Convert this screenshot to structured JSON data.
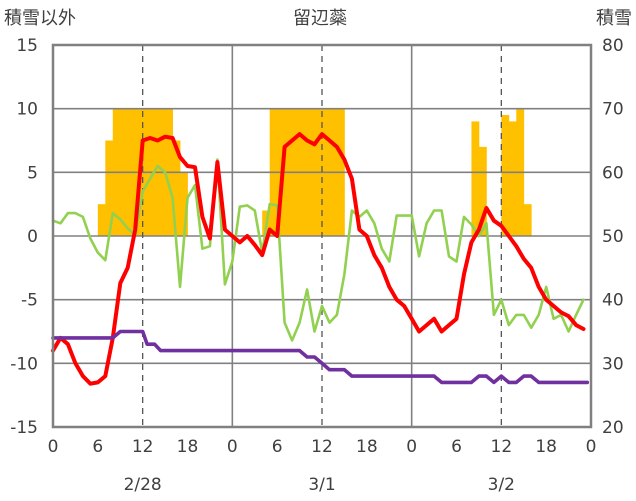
{
  "chart_data": {
    "type": "combo",
    "title": "留辺蘂",
    "left_axis_label": "積雪以外",
    "right_axis_label": "積雪",
    "left_ylim": [
      -15,
      15
    ],
    "left_ticks": [
      "15",
      "10",
      "5",
      "0",
      "-5",
      "-10",
      "-15"
    ],
    "right_ylim": [
      20,
      80
    ],
    "right_ticks": [
      "80",
      "70",
      "60",
      "50",
      "40",
      "30",
      "20"
    ],
    "x_range_hours": [
      0,
      72
    ],
    "x_tick_labels": [
      "0",
      "6",
      "12",
      "18",
      "0",
      "6",
      "12",
      "18",
      "0",
      "6",
      "12",
      "18",
      "0"
    ],
    "date_labels": [
      "2/28",
      "3/1",
      "3/2"
    ],
    "grid": true,
    "colors": {
      "red_series": "#ff0000",
      "green_series": "#92d050",
      "purple_series": "#7030a0",
      "bars": "#ffc000",
      "axis": "#808080"
    },
    "series": [
      {
        "axis": "left",
        "color": "#ff0000",
        "points": [
          [
            0,
            -9
          ],
          [
            1,
            -8
          ],
          [
            2,
            -8.5
          ],
          [
            3,
            -10
          ],
          [
            4,
            -11
          ],
          [
            5,
            -11.6
          ],
          [
            6,
            -11.5
          ],
          [
            7,
            -11
          ],
          [
            8,
            -8
          ],
          [
            9,
            -3.7
          ],
          [
            10,
            -2.5
          ],
          [
            11,
            0.5
          ],
          [
            12,
            7.5
          ],
          [
            13,
            7.7
          ],
          [
            14,
            7.5
          ],
          [
            15,
            7.8
          ],
          [
            16,
            7.7
          ],
          [
            17,
            6.2
          ],
          [
            18,
            5.5
          ],
          [
            19,
            5.4
          ],
          [
            20,
            1.5
          ],
          [
            21,
            -0.2
          ],
          [
            22,
            5.8
          ],
          [
            23,
            0.5
          ],
          [
            24,
            0
          ],
          [
            25,
            -0.5
          ],
          [
            26,
            0
          ],
          [
            27,
            -0.7
          ],
          [
            28,
            -1.5
          ],
          [
            29,
            0.5
          ],
          [
            30,
            0
          ],
          [
            31,
            7
          ],
          [
            32,
            7.5
          ],
          [
            33,
            8
          ],
          [
            34,
            7.5
          ],
          [
            35,
            7.2
          ],
          [
            36,
            8
          ],
          [
            37,
            7.5
          ],
          [
            38,
            7
          ],
          [
            39,
            6
          ],
          [
            40,
            4.5
          ],
          [
            41,
            0.5
          ],
          [
            42,
            0
          ],
          [
            43,
            -1.5
          ],
          [
            44,
            -2.5
          ],
          [
            45,
            -4
          ],
          [
            46,
            -5
          ],
          [
            47,
            -5.5
          ],
          [
            48,
            -6.5
          ],
          [
            49,
            -7.5
          ],
          [
            50,
            -7
          ],
          [
            51,
            -6.5
          ],
          [
            52,
            -7.5
          ],
          [
            53,
            -7
          ],
          [
            54,
            -6.5
          ],
          [
            55,
            -3
          ],
          [
            56,
            -0.5
          ],
          [
            57,
            0.5
          ],
          [
            58,
            2.2
          ],
          [
            59,
            1.2
          ],
          [
            60,
            0.8
          ],
          [
            61,
            0
          ],
          [
            62,
            -0.8
          ],
          [
            63,
            -1.8
          ],
          [
            64,
            -2.5
          ],
          [
            65,
            -4
          ],
          [
            66,
            -5
          ],
          [
            67,
            -5.5
          ],
          [
            68,
            -6
          ],
          [
            69,
            -6.3
          ],
          [
            70,
            -7
          ],
          [
            71,
            -7.3
          ]
        ]
      },
      {
        "axis": "left",
        "color": "#92d050",
        "points": [
          [
            0,
            1.2
          ],
          [
            1,
            1
          ],
          [
            2,
            1.8
          ],
          [
            3,
            1.8
          ],
          [
            4,
            1.5
          ],
          [
            5,
            -0.2
          ],
          [
            6,
            -1.3
          ],
          [
            7,
            -1.9
          ],
          [
            8,
            1.8
          ],
          [
            9,
            1.3
          ],
          [
            10,
            0.6
          ],
          [
            11,
            0.1
          ],
          [
            12,
            3.5
          ],
          [
            13,
            4.5
          ],
          [
            14,
            5.5
          ],
          [
            15,
            5
          ],
          [
            16,
            3
          ],
          [
            17,
            -4
          ],
          [
            18,
            3
          ],
          [
            19,
            4
          ],
          [
            20,
            -1
          ],
          [
            21,
            -0.8
          ],
          [
            22,
            6
          ],
          [
            23,
            -3.8
          ],
          [
            24,
            -2
          ],
          [
            25,
            2.3
          ],
          [
            26,
            2.4
          ],
          [
            27,
            2
          ],
          [
            28,
            -1.3
          ],
          [
            29,
            2.5
          ],
          [
            30,
            2.4
          ],
          [
            31,
            -6.8
          ],
          [
            32,
            -8.2
          ],
          [
            33,
            -6.8
          ],
          [
            34,
            -4.2
          ],
          [
            35,
            -7.5
          ],
          [
            36,
            -5.5
          ],
          [
            37,
            -6.8
          ],
          [
            38,
            -6.2
          ],
          [
            39,
            -3
          ],
          [
            40,
            2
          ],
          [
            41,
            1.5
          ],
          [
            42,
            2
          ],
          [
            43,
            1
          ],
          [
            44,
            -1
          ],
          [
            45,
            -2
          ],
          [
            46,
            1.6
          ],
          [
            47,
            1.6
          ],
          [
            48,
            1.6
          ],
          [
            49,
            -1.6
          ],
          [
            50,
            1
          ],
          [
            51,
            2
          ],
          [
            52,
            2
          ],
          [
            53,
            -1.6
          ],
          [
            54,
            -2
          ],
          [
            55,
            1.5
          ],
          [
            56,
            0.9
          ],
          [
            57,
            0
          ],
          [
            58,
            1
          ],
          [
            59,
            -6.2
          ],
          [
            60,
            -5
          ],
          [
            61,
            -7
          ],
          [
            62,
            -6.2
          ],
          [
            63,
            -6.2
          ],
          [
            64,
            -7.2
          ],
          [
            65,
            -6.2
          ],
          [
            66,
            -4
          ],
          [
            67,
            -6.5
          ],
          [
            68,
            -6.2
          ],
          [
            69,
            -7.5
          ],
          [
            70,
            -6.2
          ],
          [
            71,
            -5
          ]
        ]
      },
      {
        "axis": "left",
        "color": "#7030a0",
        "points": [
          [
            0,
            -8
          ],
          [
            8,
            -8
          ],
          [
            9,
            -7.5
          ],
          [
            12,
            -7.5
          ],
          [
            12.6,
            -8.5
          ],
          [
            13.6,
            -8.5
          ],
          [
            14.4,
            -9
          ],
          [
            21,
            -9
          ],
          [
            27,
            -9
          ],
          [
            33,
            -9
          ],
          [
            34,
            -9.5
          ],
          [
            35,
            -9.5
          ],
          [
            36,
            -10
          ],
          [
            37,
            -10.5
          ],
          [
            39,
            -10.5
          ],
          [
            40,
            -11
          ],
          [
            51,
            -11
          ],
          [
            52,
            -11.5
          ],
          [
            56,
            -11.5
          ],
          [
            57,
            -11
          ],
          [
            58,
            -11
          ],
          [
            59,
            -11.5
          ],
          [
            60,
            -11
          ],
          [
            61,
            -11.5
          ],
          [
            62,
            -11.5
          ],
          [
            63,
            -11
          ],
          [
            64,
            -11
          ],
          [
            65,
            -11.5
          ],
          [
            71.5,
            -11.5
          ]
        ]
      }
    ],
    "bars": {
      "axis": "right",
      "color": "#ffc000",
      "values": [
        [
          6,
          55
        ],
        [
          7,
          65
        ],
        [
          8,
          70
        ],
        [
          9,
          70
        ],
        [
          10,
          70
        ],
        [
          11,
          70
        ],
        [
          12,
          70
        ],
        [
          13,
          70
        ],
        [
          14,
          70
        ],
        [
          15,
          70
        ],
        [
          16,
          65
        ],
        [
          17,
          60
        ],
        [
          28,
          54
        ],
        [
          29,
          70
        ],
        [
          30,
          70
        ],
        [
          31,
          70
        ],
        [
          32,
          70
        ],
        [
          33,
          70
        ],
        [
          34,
          70
        ],
        [
          35,
          70
        ],
        [
          36,
          70
        ],
        [
          37,
          70
        ],
        [
          38,
          70
        ],
        [
          56,
          68
        ],
        [
          57,
          64
        ],
        [
          60,
          69
        ],
        [
          61,
          68
        ],
        [
          62,
          70
        ],
        [
          63,
          55
        ]
      ]
    }
  }
}
